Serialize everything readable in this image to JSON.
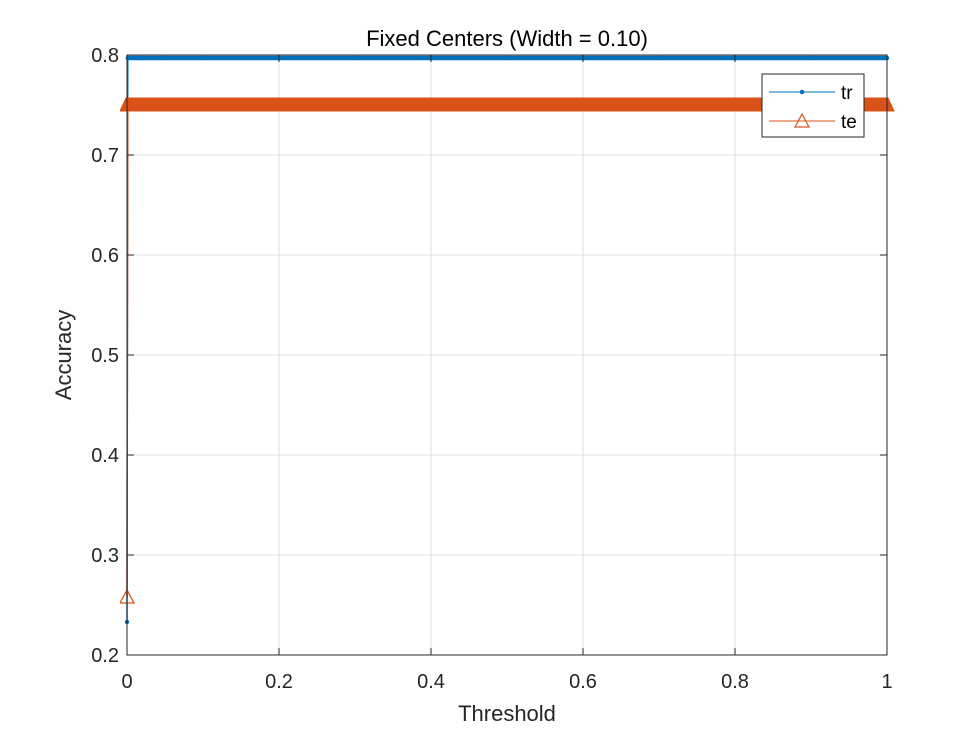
{
  "chart_data": {
    "type": "line",
    "title": "Fixed Centers (Width = 0.10)",
    "xlabel": "Threshold",
    "ylabel": "Accuracy",
    "xlim": [
      0,
      1
    ],
    "ylim": [
      0.2,
      0.8
    ],
    "xticks": [
      0,
      0.2,
      0.4,
      0.6,
      0.8,
      1
    ],
    "xtick_labels": [
      "0",
      "0.2",
      "0.4",
      "0.6",
      "0.8",
      "1"
    ],
    "yticks": [
      0.2,
      0.3,
      0.4,
      0.5,
      0.6,
      0.7,
      0.8
    ],
    "ytick_labels": [
      "0.2",
      "0.3",
      "0.4",
      "0.5",
      "0.6",
      "0.7",
      "0.8"
    ],
    "grid": true,
    "legend_position": "top-right",
    "series": [
      {
        "name": "tr",
        "color": "#0072BD",
        "marker": "point",
        "x": [
          0,
          0.001,
          0.01,
          0.02,
          0.05,
          0.1,
          0.2,
          0.3,
          0.4,
          0.5,
          0.6,
          0.7,
          0.8,
          0.9,
          1.0
        ],
        "y": [
          0.233,
          0.797,
          0.797,
          0.797,
          0.797,
          0.797,
          0.797,
          0.797,
          0.797,
          0.797,
          0.797,
          0.797,
          0.797,
          0.797,
          0.797
        ]
      },
      {
        "name": "te",
        "color": "#D95319",
        "marker": "triangle",
        "x": [
          0,
          0.001,
          0.01,
          0.02,
          0.05,
          0.1,
          0.2,
          0.3,
          0.4,
          0.5,
          0.6,
          0.7,
          0.8,
          0.9,
          1.0
        ],
        "y": [
          0.258,
          0.75,
          0.75,
          0.75,
          0.75,
          0.75,
          0.75,
          0.75,
          0.75,
          0.75,
          0.75,
          0.75,
          0.75,
          0.75,
          0.75
        ]
      }
    ]
  }
}
